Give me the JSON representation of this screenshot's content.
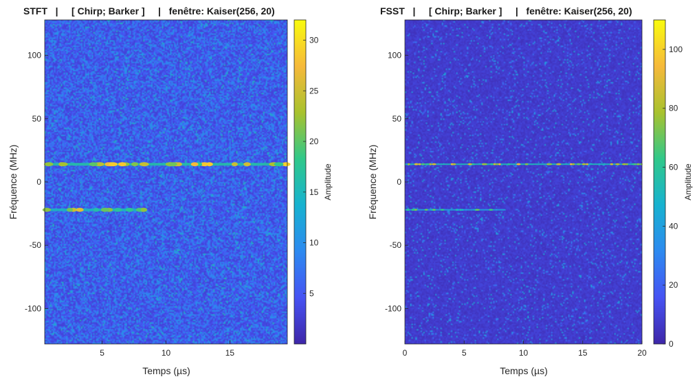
{
  "chart_data": [
    {
      "type": "heatmap",
      "title": "STFT   |     [ Chirp; Barker ]     |   fenêtre: Kaiser(256, 20)",
      "xlabel": "Temps (µs)",
      "ylabel": "Fréquence (MHz)",
      "xlim": [
        0.5,
        19.5
      ],
      "ylim": [
        -128,
        128
      ],
      "x_ticks": [
        5,
        10,
        15
      ],
      "y_ticks": [
        -100,
        -50,
        0,
        50,
        100
      ],
      "colorbar": {
        "label": "Amplitude",
        "min": 0,
        "max": 32,
        "ticks": [
          5,
          10,
          15,
          20,
          25,
          30
        ]
      },
      "colormap": [
        "#3e26a8",
        "#4653f3",
        "#2d8af0",
        "#17b2d0",
        "#30c88a",
        "#a8c22e",
        "#f6b93b",
        "#f9fb0e"
      ],
      "background_level": 8,
      "features": [
        {
          "label": "",
          "y": 14,
          "x_start": 0.5,
          "x_end": 19.5,
          "peak": 30
        },
        {
          "label": "",
          "y": -22,
          "x_start": 0.5,
          "x_end": 8.5,
          "peak": 27
        }
      ]
    },
    {
      "type": "heatmap",
      "title": "FSST   |     [ Chirp; Barker ]     |   fenêtre: Kaiser(256, 20)",
      "xlabel": "Temps (µs)",
      "ylabel": "Fréquence (MHz)",
      "xlim": [
        0,
        20
      ],
      "ylim": [
        -128,
        128
      ],
      "x_ticks": [
        0,
        5,
        10,
        15,
        20
      ],
      "y_ticks": [
        -100,
        -50,
        0,
        50,
        100
      ],
      "colorbar": {
        "label": "Amplitude",
        "min": 0,
        "max": 110,
        "ticks": [
          0,
          20,
          40,
          60,
          80,
          100
        ]
      },
      "colormap": [
        "#3e26a8",
        "#4653f3",
        "#2d8af0",
        "#17b2d0",
        "#30c88a",
        "#a8c22e",
        "#f6b93b",
        "#f9fb0e"
      ],
      "background_level": 12,
      "features": [
        {
          "label": "",
          "y": 14,
          "x_start": 0,
          "x_end": 20,
          "peak": 95
        },
        {
          "label": "",
          "y": -22,
          "x_start": 0,
          "x_end": 8.5,
          "peak": 75
        }
      ]
    }
  ]
}
